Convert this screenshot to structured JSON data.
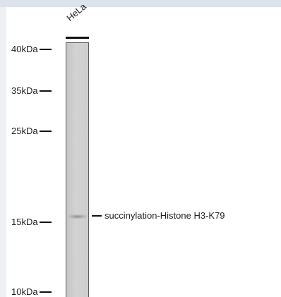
{
  "lane": {
    "label": "HeLa"
  },
  "markers": [
    {
      "label": "40kDa"
    },
    {
      "label": "35kDa"
    },
    {
      "label": "25kDa"
    },
    {
      "label": "15kDa"
    },
    {
      "label": "10kDa"
    }
  ],
  "band": {
    "label": "succinylation-Histone H3-K79"
  },
  "colors": {
    "lane_fill": "#cdcdcd",
    "band": "#787878",
    "text": "#222222"
  }
}
